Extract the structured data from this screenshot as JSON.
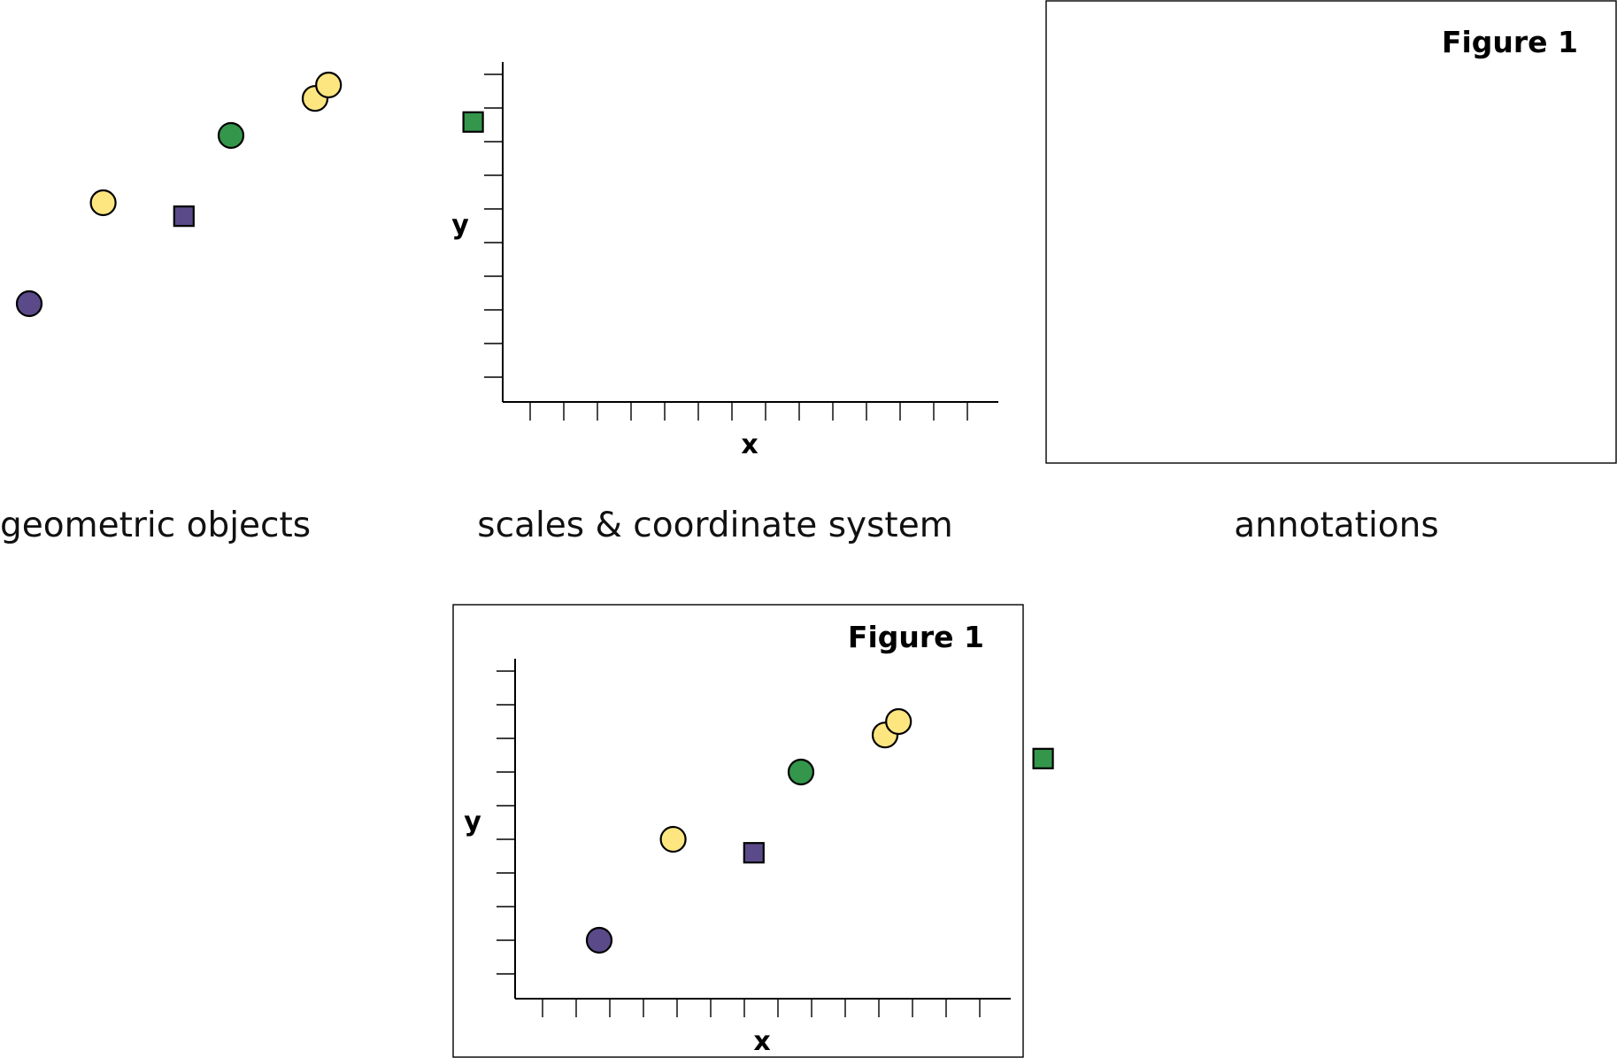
{
  "panels": {
    "geometric_objects": {
      "caption": "geometric objects"
    },
    "scales": {
      "caption": "scales & coordinate system",
      "x_label": "x",
      "y_label": "y"
    },
    "annotations": {
      "caption": "annotations",
      "figure_title": "Figure 1"
    },
    "combined": {
      "figure_title": "Figure 1",
      "x_label": "x",
      "y_label": "y"
    }
  },
  "colors": {
    "purple": "#5b4a8a",
    "yellow": "#fde680",
    "green": "#34964b"
  },
  "chart_data": {
    "type": "scatter",
    "points": [
      {
        "x": 1.0,
        "y": 1.0,
        "shape": "circle",
        "color": "purple"
      },
      {
        "x": 3.2,
        "y": 4.0,
        "shape": "circle",
        "color": "yellow"
      },
      {
        "x": 5.6,
        "y": 3.6,
        "shape": "square",
        "color": "purple"
      },
      {
        "x": 7.0,
        "y": 6.0,
        "shape": "circle",
        "color": "green"
      },
      {
        "x": 9.5,
        "y": 7.1,
        "shape": "circle",
        "color": "yellow"
      },
      {
        "x": 9.9,
        "y": 7.5,
        "shape": "circle",
        "color": "yellow"
      },
      {
        "x": 14.2,
        "y": 6.4,
        "shape": "square",
        "color": "green"
      }
    ],
    "x_ticks": 14,
    "y_ticks": 10
  }
}
